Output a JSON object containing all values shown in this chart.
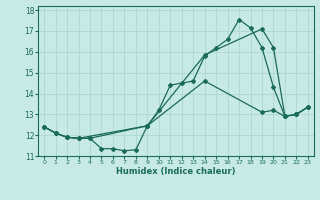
{
  "xlabel": "Humidex (Indice chaleur)",
  "xlim": [
    -0.5,
    23.5
  ],
  "ylim": [
    11,
    18.2
  ],
  "yticks": [
    11,
    12,
    13,
    14,
    15,
    16,
    17,
    18
  ],
  "xticks": [
    0,
    1,
    2,
    3,
    4,
    5,
    6,
    7,
    8,
    9,
    10,
    11,
    12,
    13,
    14,
    15,
    16,
    17,
    18,
    19,
    20,
    21,
    22,
    23
  ],
  "bg_color": "#c8eae4",
  "line_color": "#1a6b5a",
  "grid_color": "#a8d4cc",
  "series": [
    {
      "x": [
        0,
        1,
        2,
        3,
        4,
        5,
        6,
        7,
        8,
        9,
        10,
        11,
        12,
        13,
        14,
        15,
        16,
        17,
        18,
        19,
        20,
        21,
        22,
        23
      ],
      "y": [
        12.4,
        12.1,
        11.9,
        11.85,
        11.85,
        11.35,
        11.35,
        11.25,
        11.3,
        12.45,
        13.2,
        14.4,
        14.5,
        14.6,
        15.8,
        16.2,
        16.6,
        17.55,
        17.15,
        16.2,
        14.3,
        12.9,
        13.0,
        13.35
      ]
    },
    {
      "x": [
        0,
        1,
        2,
        3,
        4,
        9,
        14,
        19,
        20,
        21,
        22,
        23
      ],
      "y": [
        12.4,
        12.1,
        11.9,
        11.85,
        11.85,
        12.45,
        15.85,
        17.1,
        16.2,
        12.9,
        13.0,
        13.35
      ]
    },
    {
      "x": [
        0,
        1,
        2,
        3,
        9,
        14,
        19,
        20,
        21,
        22,
        23
      ],
      "y": [
        12.4,
        12.1,
        11.9,
        11.85,
        12.45,
        14.6,
        13.1,
        13.2,
        12.9,
        13.0,
        13.35
      ]
    }
  ]
}
